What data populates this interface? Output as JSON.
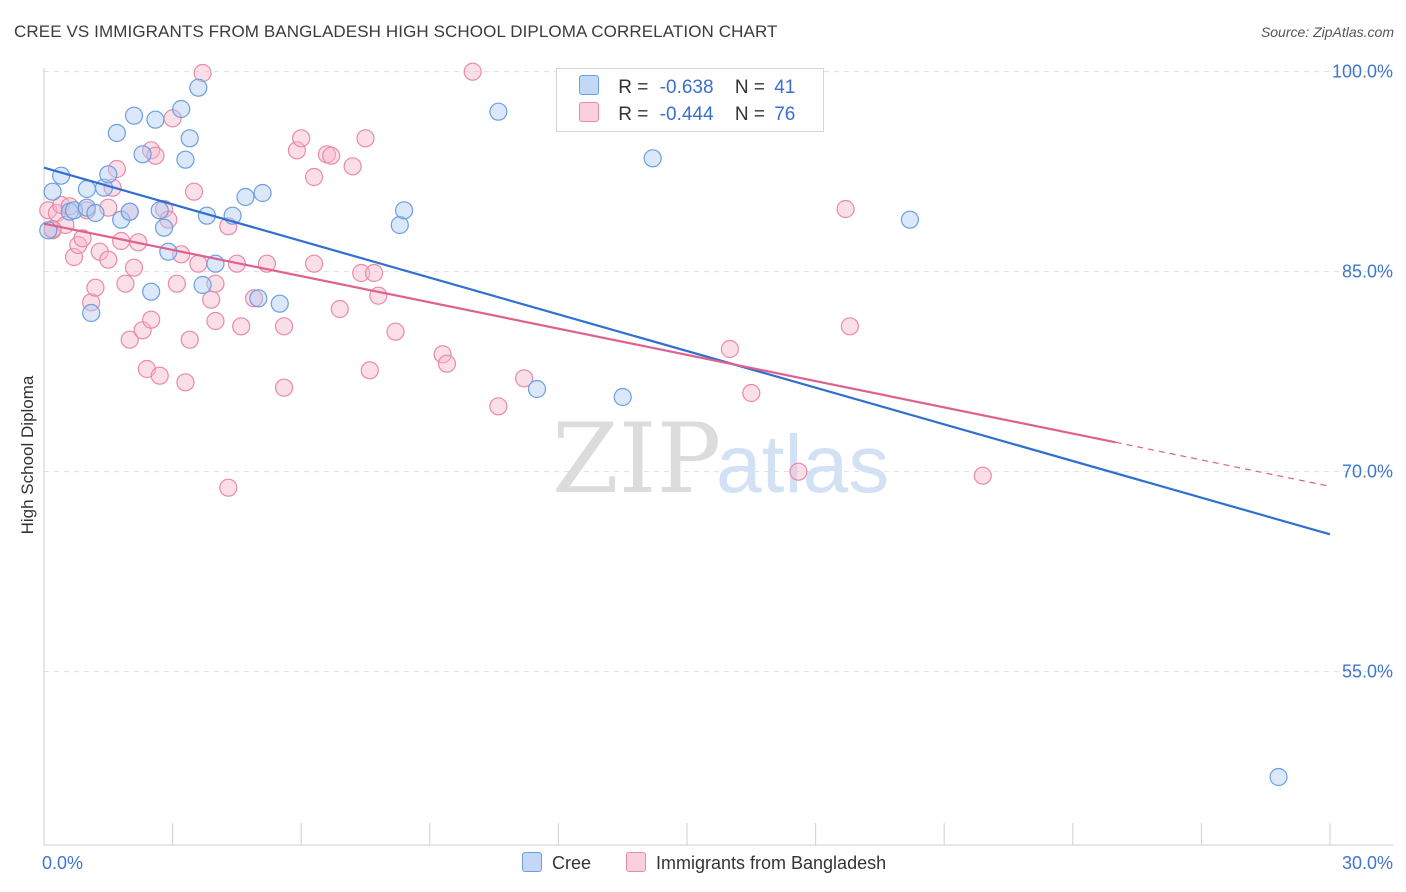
{
  "title": "CREE VS IMMIGRANTS FROM BANGLADESH HIGH SCHOOL DIPLOMA CORRELATION CHART",
  "source": "Source: ZipAtlas.com",
  "watermark": {
    "zip": "ZIP",
    "atlas": "atlas"
  },
  "legend": {
    "cree": {
      "r_label": "R =",
      "r_value": "-0.638",
      "n_label": "N =",
      "n_value": "41"
    },
    "bangladesh": {
      "r_label": "R =",
      "r_value": "-0.444",
      "n_label": "N =",
      "n_value": "76"
    }
  },
  "bottom_legend": {
    "cree": "Cree",
    "bangladesh": "Immigrants from Bangladesh"
  },
  "colors": {
    "cree_fill": "#aecbf3",
    "cree_stroke": "#6d9ee0",
    "cree_line": "#2f6fcf",
    "bang_fill": "#f7b8cc",
    "bang_stroke": "#e98aa8",
    "bang_line": "#e0618d",
    "tick_label": "#3f76d0",
    "grid": "#dedede"
  },
  "chart_data": {
    "type": "scatter",
    "title": "CREE VS IMMIGRANTS FROM BANGLADESH HIGH SCHOOL DIPLOMA CORRELATION CHART",
    "xlabel": "",
    "ylabel": "High School Diploma",
    "xlim": [
      0,
      30
    ],
    "ylim": [
      42,
      102
    ],
    "x_tick_labels": [
      {
        "value": 0,
        "label": "0.0%"
      },
      {
        "value": 30,
        "label": "30.0%"
      }
    ],
    "y_tick_labels": [
      {
        "value": 100,
        "label": "100.0%"
      },
      {
        "value": 85,
        "label": "85.0%"
      },
      {
        "value": 70,
        "label": "70.0%"
      },
      {
        "value": 55,
        "label": "55.0%"
      }
    ],
    "grid": true,
    "series": [
      {
        "name": "Cree",
        "points": [
          [
            0.1,
            88.1
          ],
          [
            0.2,
            91.0
          ],
          [
            0.4,
            92.2
          ],
          [
            0.6,
            89.5
          ],
          [
            0.7,
            89.6
          ],
          [
            1.0,
            89.8
          ],
          [
            1.0,
            91.2
          ],
          [
            1.1,
            81.9
          ],
          [
            1.2,
            89.4
          ],
          [
            1.4,
            91.3
          ],
          [
            1.5,
            92.3
          ],
          [
            1.7,
            95.4
          ],
          [
            1.8,
            88.9
          ],
          [
            2.0,
            89.5
          ],
          [
            2.1,
            96.7
          ],
          [
            2.3,
            93.8
          ],
          [
            2.5,
            83.5
          ],
          [
            2.6,
            96.4
          ],
          [
            2.7,
            89.6
          ],
          [
            2.8,
            88.3
          ],
          [
            2.9,
            86.5
          ],
          [
            3.2,
            97.2
          ],
          [
            3.3,
            93.4
          ],
          [
            3.4,
            95.0
          ],
          [
            3.6,
            98.8
          ],
          [
            3.7,
            84.0
          ],
          [
            3.8,
            89.2
          ],
          [
            4.0,
            85.6
          ],
          [
            4.4,
            89.2
          ],
          [
            4.7,
            90.6
          ],
          [
            5.0,
            83.0
          ],
          [
            5.1,
            90.9
          ],
          [
            5.5,
            82.6
          ],
          [
            8.3,
            88.5
          ],
          [
            8.4,
            89.6
          ],
          [
            10.6,
            97.0
          ],
          [
            11.5,
            76.2
          ],
          [
            13.5,
            75.6
          ],
          [
            14.2,
            93.5
          ],
          [
            20.2,
            88.9
          ],
          [
            28.8,
            47.1
          ]
        ],
        "trend": {
          "x": [
            0,
            30
          ],
          "y": [
            92.8,
            65.3
          ]
        }
      },
      {
        "name": "Immigrants from Bangladesh",
        "points": [
          [
            0.1,
            89.6
          ],
          [
            0.2,
            88.1
          ],
          [
            0.3,
            89.4
          ],
          [
            0.4,
            90.0
          ],
          [
            0.5,
            88.5
          ],
          [
            0.6,
            89.9
          ],
          [
            0.7,
            86.1
          ],
          [
            0.8,
            87.0
          ],
          [
            0.9,
            87.5
          ],
          [
            1.0,
            89.6
          ],
          [
            1.1,
            82.7
          ],
          [
            1.2,
            83.8
          ],
          [
            1.3,
            86.5
          ],
          [
            1.5,
            89.8
          ],
          [
            1.6,
            91.3
          ],
          [
            1.7,
            92.7
          ],
          [
            1.8,
            87.3
          ],
          [
            1.9,
            84.1
          ],
          [
            2.0,
            89.5
          ],
          [
            2.0,
            79.9
          ],
          [
            2.1,
            85.3
          ],
          [
            2.2,
            87.2
          ],
          [
            2.3,
            80.6
          ],
          [
            2.4,
            77.7
          ],
          [
            2.5,
            94.1
          ],
          [
            2.5,
            81.4
          ],
          [
            2.6,
            93.7
          ],
          [
            2.7,
            77.2
          ],
          [
            2.8,
            89.7
          ],
          [
            2.9,
            88.9
          ],
          [
            3.0,
            96.5
          ],
          [
            3.1,
            84.1
          ],
          [
            3.2,
            86.3
          ],
          [
            3.3,
            76.7
          ],
          [
            3.4,
            79.9
          ],
          [
            3.5,
            91.0
          ],
          [
            3.6,
            85.6
          ],
          [
            3.7,
            99.9
          ],
          [
            3.9,
            82.9
          ],
          [
            4.0,
            84.1
          ],
          [
            4.0,
            81.3
          ],
          [
            4.3,
            88.4
          ],
          [
            4.5,
            85.6
          ],
          [
            4.6,
            80.9
          ],
          [
            4.9,
            83.0
          ],
          [
            5.2,
            85.6
          ],
          [
            5.6,
            80.9
          ],
          [
            5.6,
            76.3
          ],
          [
            5.9,
            94.1
          ],
          [
            6.0,
            95.0
          ],
          [
            6.3,
            92.1
          ],
          [
            6.3,
            85.6
          ],
          [
            6.6,
            93.8
          ],
          [
            6.7,
            93.7
          ],
          [
            6.9,
            82.2
          ],
          [
            7.2,
            92.9
          ],
          [
            7.4,
            84.9
          ],
          [
            7.5,
            95.0
          ],
          [
            7.6,
            77.6
          ],
          [
            7.7,
            84.9
          ],
          [
            7.8,
            83.2
          ],
          [
            8.2,
            80.5
          ],
          [
            9.3,
            78.8
          ],
          [
            9.4,
            78.1
          ],
          [
            10.0,
            100.0
          ],
          [
            10.6,
            74.9
          ],
          [
            11.2,
            77.0
          ],
          [
            16.0,
            79.2
          ],
          [
            16.5,
            75.9
          ],
          [
            17.6,
            70.0
          ],
          [
            18.7,
            89.7
          ],
          [
            18.8,
            80.9
          ],
          [
            21.9,
            69.7
          ],
          [
            4.3,
            68.8
          ],
          [
            0.2,
            88.2
          ],
          [
            1.5,
            85.9
          ]
        ],
        "trend": {
          "x": [
            0,
            25
          ],
          "y": [
            88.6,
            72.2
          ]
        },
        "trend_dashed": {
          "x": [
            25,
            30
          ],
          "y": [
            72.2,
            68.9
          ]
        }
      }
    ]
  }
}
